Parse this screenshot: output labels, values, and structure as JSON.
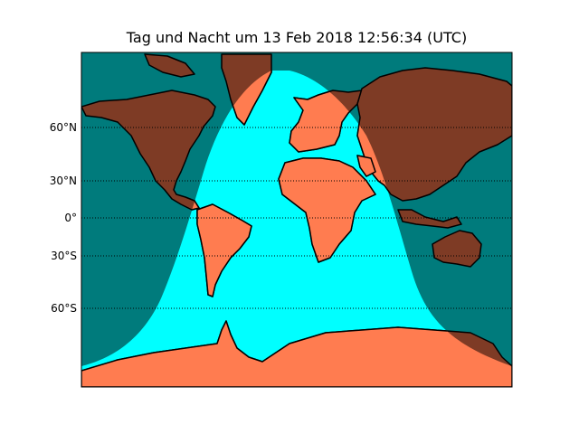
{
  "title": "Tag und Nacht um 13 Feb 2018 12:56:34 (UTC)",
  "colors": {
    "ocean_day": "#00ffff",
    "ocean_night": "#007b7c",
    "land_day": "#ff7c50",
    "land_night": "#7e3b25",
    "coastline": "#000000",
    "gridline": "#000000"
  },
  "latitude_labels": [
    {
      "lat": 60,
      "label": "60°N"
    },
    {
      "lat": 30,
      "label": "30°N"
    },
    {
      "lat": 0,
      "label": "0°"
    },
    {
      "lat": -30,
      "label": "30°S"
    },
    {
      "lat": -60,
      "label": "60°S"
    }
  ]
}
